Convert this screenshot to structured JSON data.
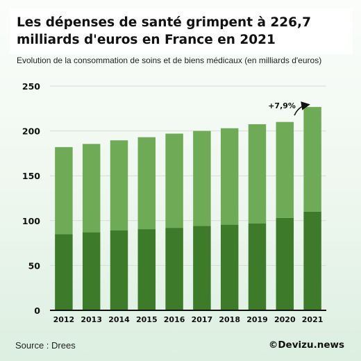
{
  "title": "Les dépenses de santé grimpent à 226,7 milliards d'euros en France en 2021",
  "subtitle": "Evolution de la consommation de soins et de biens médicaux (en milliards d'euros)",
  "source": "Source : Drees",
  "brand": "©Devizu.news",
  "colors": {
    "light_green": "#6fab56",
    "dark_green": "#3d7a2a",
    "gridline": "#d6dcd6"
  },
  "chart_data": {
    "type": "bar",
    "stacked": true,
    "categories": [
      "2012",
      "2013",
      "2014",
      "2015",
      "2016",
      "2017",
      "2018",
      "2019",
      "2020",
      "2021"
    ],
    "series": [
      {
        "values": [
          85,
          87,
          89,
          90.5,
          92,
          94,
          95.5,
          97,
          103,
          110
        ]
      },
      {
        "values": [
          97,
          98.5,
          100.5,
          102.5,
          105,
          106,
          107.5,
          110.5,
          107,
          116.7
        ]
      }
    ],
    "totals": [
      182,
      185.5,
      189.5,
      193,
      197,
      200,
      203,
      207.5,
      210,
      226.7
    ],
    "ylim": [
      0,
      250
    ],
    "yticks": [
      0,
      50,
      100,
      150,
      200,
      250
    ],
    "grid": true,
    "annotation": {
      "text": "+7,9%",
      "category": "2021"
    }
  }
}
